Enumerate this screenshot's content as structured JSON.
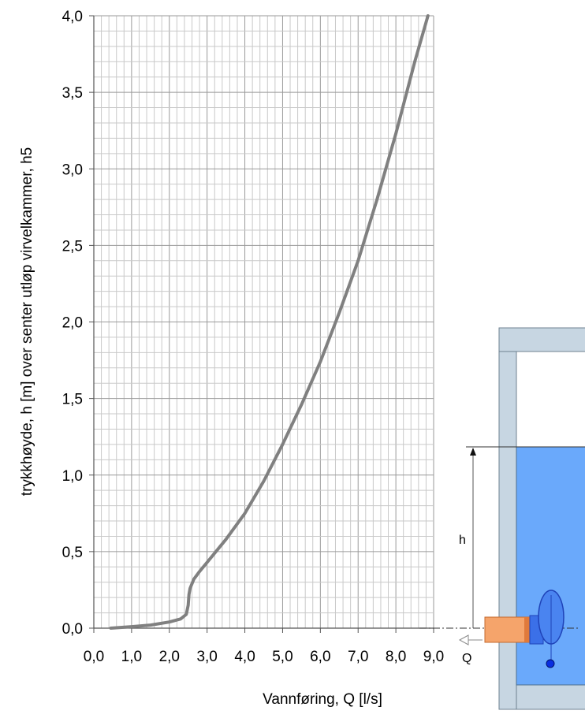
{
  "chart_data": {
    "type": "line",
    "xlabel": "Vannføring, Q [l/s]",
    "ylabel": "trykkhøyde, h [m] over senter utløp virvelkammer, h5",
    "xlim": [
      0,
      9
    ],
    "ylim": [
      0,
      4
    ],
    "x_ticks": [
      0,
      1,
      2,
      3,
      4,
      5,
      6,
      7,
      8,
      9
    ],
    "y_ticks": [
      0,
      0.5,
      1,
      1.5,
      2,
      2.5,
      3,
      3.5,
      4
    ],
    "x_tick_labels": [
      "0,0",
      "1,0",
      "2,0",
      "3,0",
      "4,0",
      "5,0",
      "6,0",
      "7,0",
      "8,0",
      "9,0"
    ],
    "y_tick_labels": [
      "0,0",
      "0,5",
      "1,0",
      "1,5",
      "2,0",
      "2,5",
      "3,0",
      "3,5",
      "4,0"
    ],
    "grid": true,
    "minor_grid_x_step": 0.2,
    "minor_grid_y_step": 0.1,
    "series": [
      {
        "color": "#808080",
        "x": [
          0.45,
          1.0,
          1.5,
          2.0,
          2.3,
          2.45,
          2.5,
          2.52,
          2.55,
          2.65,
          2.8,
          3.0,
          3.5,
          4.0,
          4.5,
          5.0,
          5.5,
          6.0,
          6.5,
          7.0,
          7.5,
          8.0,
          8.5,
          8.85
        ],
        "y": [
          0.0,
          0.01,
          0.02,
          0.04,
          0.06,
          0.09,
          0.15,
          0.22,
          0.26,
          0.32,
          0.37,
          0.43,
          0.58,
          0.75,
          0.96,
          1.2,
          1.46,
          1.74,
          2.06,
          2.4,
          2.8,
          3.23,
          3.7,
          4.0
        ]
      }
    ]
  },
  "diagram": {
    "h_label": "h",
    "q_label": "Q",
    "colors": {
      "wall": "#c7d6e2",
      "wall_edge": "#6f8290",
      "water": "#6aa9fb",
      "pipe": "#f5a46b",
      "pipe_dark": "#e07a3c",
      "valve": "#3b70e8",
      "valve_dark": "#1f43b8",
      "ball": "#0a2ee0"
    }
  }
}
